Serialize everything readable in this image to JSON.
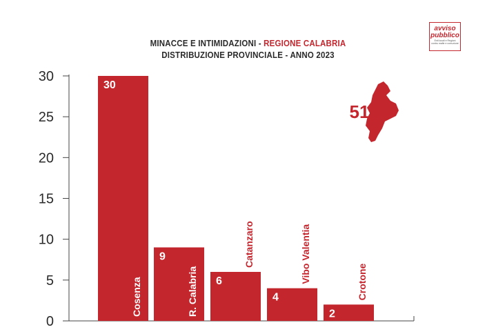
{
  "title": {
    "line1_prefix": "MINACCE E INTIMIDAZIONI - ",
    "line1_accent": "REGIONE CALABRIA",
    "line2": "DISTRIBUZIONE PROVINCIALE - ANNO 2023"
  },
  "logo": {
    "line1": "avviso",
    "line2": "pubblico",
    "tagline": "Enti locali e Regioni contro mafie e corruzione"
  },
  "total": {
    "value": "51"
  },
  "colors": {
    "bar": "#c4262e",
    "axis": "#444444",
    "text": "#2a2a2a",
    "bar_text": "#ffffff"
  },
  "chart_data": {
    "type": "bar",
    "title": "MINACCE E INTIMIDAZIONI - REGIONE CALABRIA DISTRIBUZIONE PROVINCIALE - ANNO 2023",
    "categories": [
      "Cosenza",
      "R. Calabria",
      "Catanzaro",
      "Vibo Valentia",
      "Crotone"
    ],
    "values": [
      30,
      9,
      6,
      4,
      2
    ],
    "ylim": [
      0,
      30
    ],
    "yticks": [
      0,
      5,
      10,
      15,
      20,
      25,
      30
    ],
    "grid": false,
    "legend": "none"
  }
}
